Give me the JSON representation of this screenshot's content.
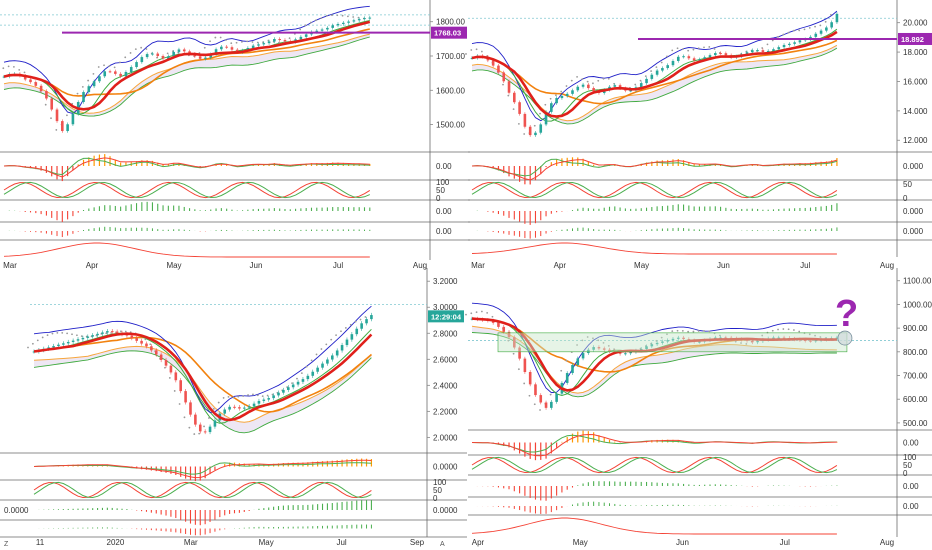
{
  "colors": {
    "up": "#26a69a",
    "down": "#ef5350",
    "red_line": "#e0201b",
    "orange_line": "#f2820f",
    "green_line": "#3faa3f",
    "blue_line": "#2020c8",
    "lagging": "#9a9a9a",
    "cloud": "#e8dff0",
    "cloud_edge": "#f7a63c",
    "purple": "#9c27b0",
    "hline": "#80c8d0",
    "osc_green": "#4caf50",
    "osc_orange": "#ff9800",
    "osc_red": "#f44336"
  },
  "chart_data": [
    {
      "type": "line",
      "panel": "top-left",
      "yticks": [
        "1800.00",
        "1700.00",
        "1600.00",
        "1500.00"
      ],
      "ylim": [
        1420,
        1840
      ],
      "price_label": "1768.03",
      "price_level": 1768.03,
      "resistance_level": 1790,
      "upper_level": 1820,
      "xticks": [
        "Mar",
        "Apr",
        "May",
        "Jun",
        "Jul",
        "Aug"
      ],
      "indicator_ticks": [
        [
          "0.00"
        ],
        [
          "100",
          "50",
          "0"
        ],
        [
          "0.00"
        ],
        [
          "0.00"
        ]
      ],
      "price": [
        1640,
        1650,
        1645,
        1630,
        1620,
        1600,
        1570,
        1520,
        1480,
        1510,
        1560,
        1600,
        1620,
        1640,
        1660,
        1650,
        1640,
        1660,
        1680,
        1700,
        1710,
        1700,
        1690,
        1710,
        1720,
        1710,
        1700,
        1690,
        1700,
        1720,
        1730,
        1720,
        1710,
        1720,
        1730,
        1735,
        1740,
        1750,
        1745,
        1740,
        1750,
        1760,
        1770,
        1775,
        1780,
        1790,
        1795,
        1800,
        1805,
        1810,
        1812
      ]
    },
    {
      "type": "line",
      "panel": "top-right",
      "yticks": [
        "20.000",
        "18.000",
        "16.000",
        "14.000",
        "12.000"
      ],
      "ylim": [
        11.2,
        21
      ],
      "price_label": "18.892",
      "price_level": 18.892,
      "upper_level": 20.3,
      "xticks": [
        "Mar",
        "Apr",
        "May",
        "Jun",
        "Jul",
        "Aug"
      ],
      "indicator_ticks": [
        [
          "0.000"
        ],
        [
          "50",
          "0"
        ],
        [
          "0.000"
        ],
        [
          "0.000"
        ]
      ],
      "price": [
        17.6,
        17.8,
        17.5,
        17.0,
        16.3,
        15.2,
        14.3,
        13.0,
        12.2,
        12.8,
        14.0,
        14.8,
        15.0,
        15.2,
        15.6,
        15.8,
        15.4,
        15.2,
        15.5,
        15.8,
        15.5,
        15.3,
        15.6,
        16.0,
        16.4,
        16.8,
        17.0,
        17.4,
        17.8,
        17.6,
        17.4,
        17.6,
        17.8,
        18.0,
        17.8,
        17.6,
        17.8,
        18.0,
        18.2,
        18.0,
        18.1,
        18.3,
        18.5,
        18.6,
        18.8,
        18.9,
        19.2,
        19.5,
        19.8,
        20.6
      ]
    },
    {
      "type": "line",
      "panel": "bottom-left",
      "yticks": [
        "3.2000",
        "3.0000",
        "2.8000",
        "2.6000",
        "2.4000",
        "2.2000",
        "2.0000"
      ],
      "ylim": [
        1.88,
        3.24
      ],
      "price_label": "12:29:04",
      "price_level": 2.93,
      "upper_level": 3.02,
      "xticks": [
        "11",
        "2020",
        "Mar",
        "May",
        "Jul",
        "Sep"
      ],
      "indicator_ticks": [
        [
          "0.0000"
        ],
        [
          "100",
          "50",
          "0"
        ],
        [
          "0.0000"
        ],
        []
      ],
      "left_label": "0.0000",
      "price": [
        2.66,
        2.68,
        2.7,
        2.72,
        2.74,
        2.76,
        2.78,
        2.8,
        2.82,
        2.8,
        2.78,
        2.74,
        2.7,
        2.64,
        2.56,
        2.46,
        2.3,
        2.12,
        2.02,
        2.1,
        2.2,
        2.24,
        2.22,
        2.24,
        2.28,
        2.3,
        2.34,
        2.38,
        2.42,
        2.46,
        2.52,
        2.58,
        2.64,
        2.72,
        2.8,
        2.88,
        2.94
      ]
    },
    {
      "type": "line",
      "panel": "bottom-right",
      "yticks": [
        "1100.00",
        "1000.00",
        "900.00",
        "800.00",
        "700.00",
        "600.00",
        "500.00"
      ],
      "ylim": [
        470,
        1120
      ],
      "annotation": "?",
      "box_range": [
        800,
        880
      ],
      "dashed_level": 848,
      "xticks": [
        "Apr",
        "May",
        "Jun",
        "Jul",
        "Aug"
      ],
      "indicator_ticks": [
        [
          "0.00"
        ],
        [
          "100",
          "50",
          "0"
        ],
        [
          "0.00"
        ],
        [
          "0.00"
        ]
      ],
      "price": [
        940,
        935,
        930,
        900,
        860,
        780,
        680,
        600,
        560,
        620,
        700,
        760,
        800,
        820,
        810,
        800,
        790,
        800,
        810,
        830,
        840,
        850,
        860,
        850,
        840,
        850,
        860,
        860,
        855,
        850,
        840,
        850,
        860,
        860,
        855,
        850,
        845,
        850,
        855,
        860
      ]
    }
  ],
  "footer": {
    "left_glyph": "Z",
    "right_glyph": "A"
  }
}
